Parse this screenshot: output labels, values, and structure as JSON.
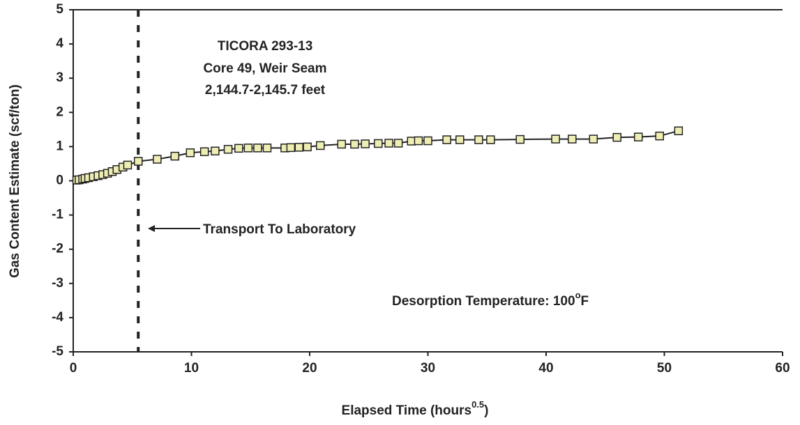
{
  "chart_data": {
    "type": "line",
    "annotation_lines": [
      "TICORA 293-13",
      "Core 49, Weir Seam",
      "2,144.7-2,145.7 feet"
    ],
    "arrow_label": "Transport To Laboratory",
    "temperature_label_parts": [
      "Desorption Temperature: 100",
      "o",
      "F"
    ],
    "xlabel_parts": [
      "Elapsed Time (hours",
      "0.5",
      ")"
    ],
    "ylabel": "Gas Content Estimate (scf/ton)",
    "vline": 5.5,
    "x": [
      0.3,
      0.5,
      0.8,
      1.0,
      1.3,
      1.7,
      2.1,
      2.5,
      2.9,
      3.3,
      3.7,
      4.2,
      4.6,
      5.5,
      7.1,
      8.6,
      9.9,
      11.1,
      12.0,
      13.1,
      14.0,
      14.8,
      15.6,
      16.4,
      17.9,
      18.4,
      19.1,
      19.8,
      20.9,
      22.7,
      23.8,
      24.7,
      25.8,
      26.7,
      27.5,
      28.6,
      29.2,
      30.0,
      31.6,
      32.7,
      34.3,
      35.3,
      37.8,
      40.8,
      42.2,
      44.0,
      46.0,
      47.8,
      49.6,
      51.2
    ],
    "series": [
      {
        "color": "#eeeeb4",
        "values": [
          0.02,
          0.03,
          0.05,
          0.07,
          0.09,
          0.12,
          0.15,
          0.18,
          0.22,
          0.27,
          0.33,
          0.4,
          0.46,
          0.57,
          0.63,
          0.72,
          0.82,
          0.85,
          0.87,
          0.92,
          0.95,
          0.96,
          0.96,
          0.96,
          0.96,
          0.97,
          0.98,
          0.99,
          1.03,
          1.07,
          1.07,
          1.08,
          1.09,
          1.1,
          1.1,
          1.16,
          1.17,
          1.17,
          1.2,
          1.2,
          1.2,
          1.2,
          1.21,
          1.22,
          1.22,
          1.22,
          1.27,
          1.28,
          1.31,
          1.46
        ]
      }
    ],
    "xlim": [
      0,
      60
    ],
    "xticks": [
      0,
      10,
      20,
      30,
      40,
      50,
      60
    ],
    "ylim": [
      -5,
      5
    ],
    "yticks": [
      -5,
      -4,
      -3,
      -2,
      -1,
      0,
      1,
      2,
      3,
      4,
      5
    ],
    "grid": false
  }
}
